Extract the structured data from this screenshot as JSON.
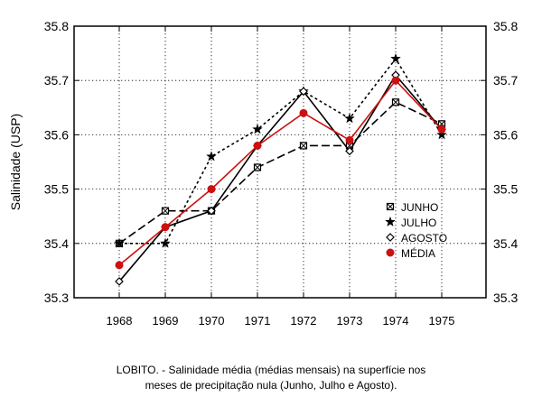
{
  "chart_data": {
    "type": "line",
    "x": [
      "1968",
      "1969",
      "1970",
      "1971",
      "1972",
      "1973",
      "1974",
      "1975"
    ],
    "ylabel": "Salinidade (USP)",
    "xlabel": "",
    "ylim": [
      35.3,
      35.8
    ],
    "yticks": [
      "35.3",
      "35.4",
      "35.5",
      "35.6",
      "35.7",
      "35.8"
    ],
    "grid": true,
    "legend_position": "right-middle",
    "series": [
      {
        "name": "JUNHO",
        "marker": "square-x",
        "dash": "dash-long",
        "color": "#000000",
        "values": [
          35.4,
          35.46,
          35.46,
          35.54,
          35.58,
          35.58,
          35.66,
          35.62
        ]
      },
      {
        "name": "JULHO",
        "marker": "star",
        "dash": "dotted",
        "color": "#000000",
        "values": [
          35.4,
          35.4,
          35.56,
          35.61,
          35.68,
          35.63,
          35.74,
          35.6
        ]
      },
      {
        "name": "AGOSTO",
        "marker": "diamond",
        "dash": "solid",
        "color": "#000000",
        "values": [
          35.33,
          35.43,
          35.46,
          35.58,
          35.68,
          35.57,
          35.71,
          35.61
        ]
      },
      {
        "name": "MÉDIA",
        "marker": "circle",
        "dash": "solid",
        "color": "#cc1111",
        "values": [
          35.36,
          35.43,
          35.5,
          35.58,
          35.64,
          35.59,
          35.7,
          35.61
        ]
      }
    ]
  },
  "caption": {
    "line1": "LOBITO. - Salinidade média (médias mensais) na superfície nos",
    "line2": "meses de precipitação nula (Junho, Julho e Agosto)."
  }
}
